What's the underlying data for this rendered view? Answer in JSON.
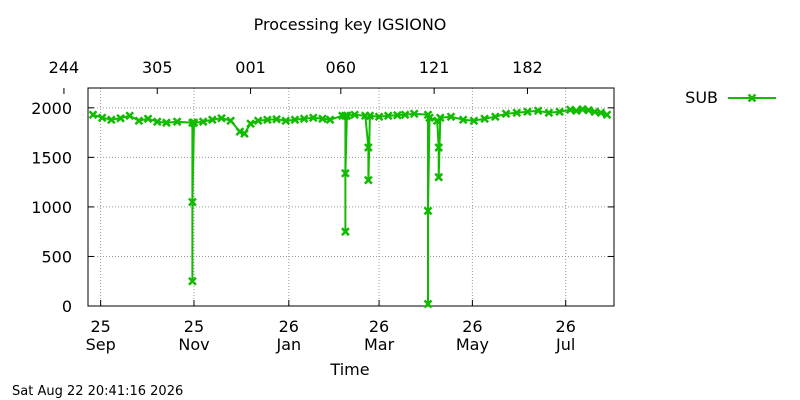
{
  "chart_data": {
    "type": "line",
    "title": "Processing key IGSIONO",
    "xlabel": "Time",
    "ylabel": "",
    "ylim": [
      0,
      2200
    ],
    "yticks": [
      0,
      500,
      1000,
      1500,
      2000
    ],
    "grid": true,
    "legend_position": "top-right, outside plot",
    "x_range": [
      "2025-09-20",
      "2026-08-22"
    ],
    "bottom_ticks": [
      {
        "date": "2025-09-25",
        "day": "25",
        "month": "Sep"
      },
      {
        "date": "2025-11-25",
        "day": "25",
        "month": "Nov"
      },
      {
        "date": "2026-01-26",
        "day": "26",
        "month": "Jan"
      },
      {
        "date": "2026-03-26",
        "day": "26",
        "month": "Mar"
      },
      {
        "date": "2026-05-26",
        "day": "26",
        "month": "May"
      },
      {
        "date": "2026-07-26",
        "day": "26",
        "month": "Jul"
      }
    ],
    "top_ticks": [
      {
        "date": "2025-09-01",
        "label": "244"
      },
      {
        "date": "2025-11-01",
        "label": "305"
      },
      {
        "date": "2026-01-01",
        "label": "001"
      },
      {
        "date": "2026-03-01",
        "label": "060"
      },
      {
        "date": "2026-05-01",
        "label": "121"
      },
      {
        "date": "2026-07-01",
        "label": "182"
      }
    ],
    "series": [
      {
        "name": "SUB",
        "color": "#11bb00",
        "marker": "x",
        "points": [
          [
            "2025-09-20",
            1930
          ],
          [
            "2025-09-26",
            1900
          ],
          [
            "2025-10-02",
            1880
          ],
          [
            "2025-10-08",
            1895
          ],
          [
            "2025-10-14",
            1920
          ],
          [
            "2025-10-20",
            1870
          ],
          [
            "2025-10-26",
            1890
          ],
          [
            "2025-11-01",
            1860
          ],
          [
            "2025-11-07",
            1850
          ],
          [
            "2025-11-14",
            1860
          ],
          [
            "2025-11-24",
            1850
          ],
          [
            "2025-11-24",
            250
          ],
          [
            "2025-11-24",
            1050
          ],
          [
            "2025-11-25",
            1850
          ],
          [
            "2025-12-01",
            1860
          ],
          [
            "2025-12-07",
            1880
          ],
          [
            "2025-12-13",
            1895
          ],
          [
            "2025-12-19",
            1870
          ],
          [
            "2025-12-25",
            1760
          ],
          [
            "2025-12-28",
            1740
          ],
          [
            "2026-01-01",
            1840
          ],
          [
            "2026-01-06",
            1870
          ],
          [
            "2026-01-12",
            1880
          ],
          [
            "2026-01-18",
            1885
          ],
          [
            "2026-01-24",
            1870
          ],
          [
            "2026-01-30",
            1880
          ],
          [
            "2026-02-05",
            1890
          ],
          [
            "2026-02-11",
            1900
          ],
          [
            "2026-02-17",
            1890
          ],
          [
            "2026-02-22",
            1880
          ],
          [
            "2026-03-02",
            1920
          ],
          [
            "2026-03-04",
            1920
          ],
          [
            "2026-03-04",
            750
          ],
          [
            "2026-03-04",
            1340
          ],
          [
            "2026-03-05",
            1920
          ],
          [
            "2026-03-10",
            1930
          ],
          [
            "2026-03-17",
            1920
          ],
          [
            "2026-03-19",
            1600
          ],
          [
            "2026-03-19",
            1270
          ],
          [
            "2026-03-20",
            1920
          ],
          [
            "2026-03-26",
            1910
          ],
          [
            "2026-04-01",
            1920
          ],
          [
            "2026-04-07",
            1925
          ],
          [
            "2026-04-12",
            1930
          ],
          [
            "2026-04-18",
            1940
          ],
          [
            "2026-04-27",
            1930
          ],
          [
            "2026-04-27",
            20
          ],
          [
            "2026-04-27",
            960
          ],
          [
            "2026-04-28",
            1900
          ],
          [
            "2026-05-03",
            1870
          ],
          [
            "2026-05-04",
            1600
          ],
          [
            "2026-05-04",
            1300
          ],
          [
            "2026-05-05",
            1900
          ],
          [
            "2026-05-12",
            1910
          ],
          [
            "2026-05-20",
            1880
          ],
          [
            "2026-05-27",
            1870
          ],
          [
            "2026-06-03",
            1890
          ],
          [
            "2026-06-10",
            1910
          ],
          [
            "2026-06-17",
            1940
          ],
          [
            "2026-06-24",
            1950
          ],
          [
            "2026-07-01",
            1960
          ],
          [
            "2026-07-08",
            1970
          ],
          [
            "2026-07-15",
            1950
          ],
          [
            "2026-07-22",
            1960
          ],
          [
            "2026-07-29",
            1980
          ],
          [
            "2026-08-02",
            1970
          ],
          [
            "2026-08-06",
            1985
          ],
          [
            "2026-08-10",
            1975
          ],
          [
            "2026-08-14",
            1960
          ],
          [
            "2026-08-18",
            1950
          ],
          [
            "2026-08-22",
            1930
          ]
        ]
      }
    ]
  },
  "footer": {
    "timestamp": "Sat Aug 22 20:41:16 2026"
  }
}
